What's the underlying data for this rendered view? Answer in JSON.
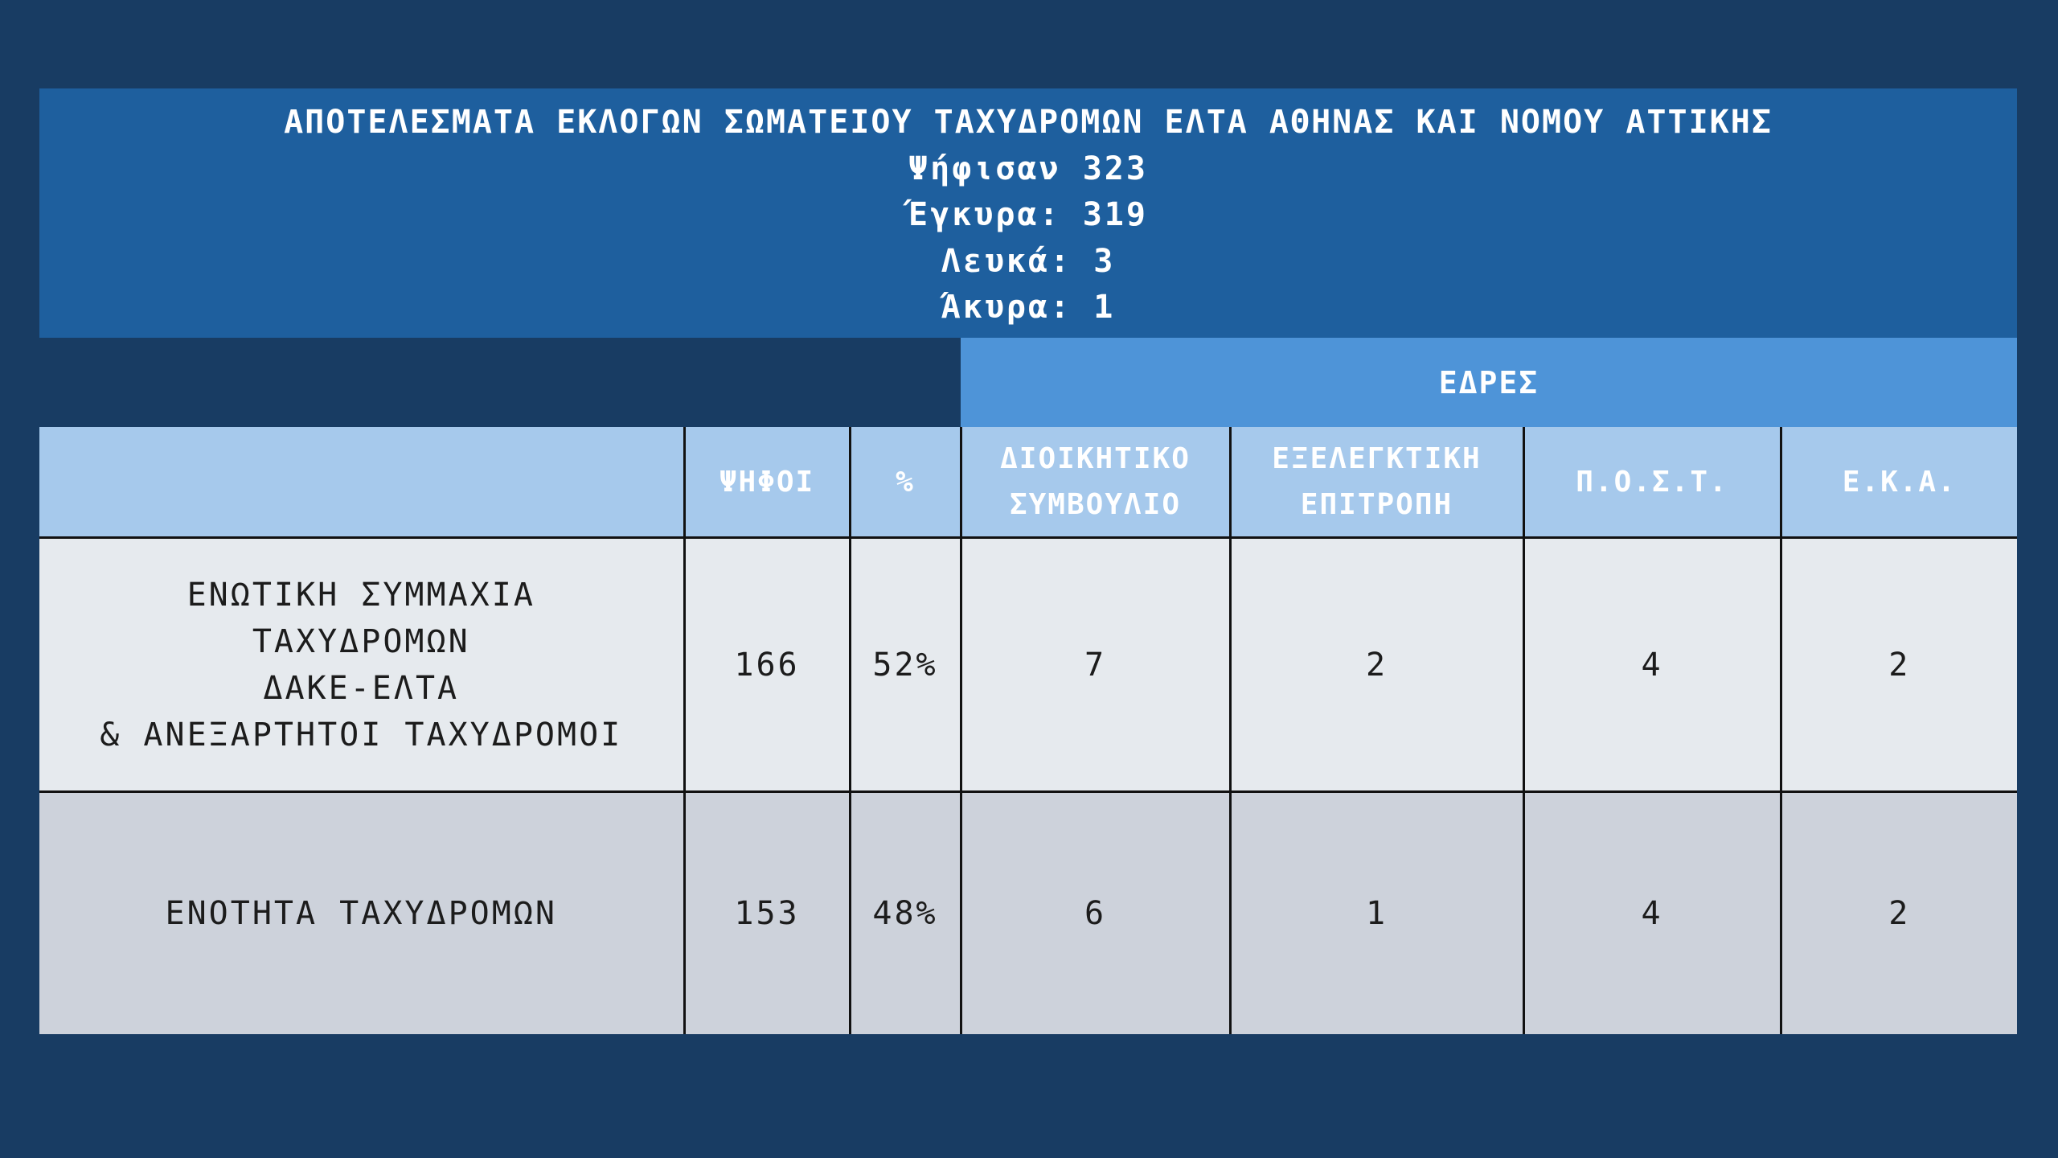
{
  "banner": {
    "title": "ΑΠΟΤΕΛΕΣΜΑΤΑ ΕΚΛΟΓΩΝ ΣΩΜΑΤΕΙΟΥ ΤΑΧΥΔΡΟΜΩΝ ΕΛΤΑ ΑΘΗΝΑΣ ΚΑΙ ΝΟΜΟΥ ΑΤΤΙΚΗΣ",
    "voted": "Ψήφισαν 323",
    "valid": "Έγκυρα: 319",
    "blank": "Λευκά: 3",
    "invalid": "Άκυρα: 1"
  },
  "seats_header": "ΕΔΡΕΣ",
  "table": {
    "columns": {
      "party": "",
      "votes": "ΨΗΦΟΙ",
      "percent": "%",
      "board_line1": "ΔΙΟΙΚΗΤΙΚΟ",
      "board_line2": "ΣΥΜΒΟΥΛΙΟ",
      "audit_line1": "ΕΞΕΛΕΓΚΤΙΚΗ",
      "audit_line2": "ΕΠΙΤΡΟΠΗ",
      "post": "Π.Ο.Σ.Τ.",
      "eka": "Ε.Κ.Α."
    },
    "rows": [
      {
        "party_lines": [
          "ΕΝΩΤΙΚΗ ΣΥΜΜΑΧΙΑ",
          "ΤΑΧΥΔΡΟΜΩΝ",
          "ΔΑΚΕ-ΕΛΤΑ",
          "& ΑΝΕΞΑΡΤΗΤΟΙ ΤΑΧΥΔΡΟΜΟΙ"
        ],
        "votes": "166",
        "percent": "52%",
        "board": "7",
        "audit": "2",
        "post": "4",
        "eka": "2"
      },
      {
        "party_lines": [
          "ΕΝΟΤΗΤΑ ΤΑΧΥΔΡΟΜΩΝ"
        ],
        "votes": "153",
        "percent": "48%",
        "board": "6",
        "audit": "1",
        "post": "4",
        "eka": "2"
      }
    ]
  }
}
